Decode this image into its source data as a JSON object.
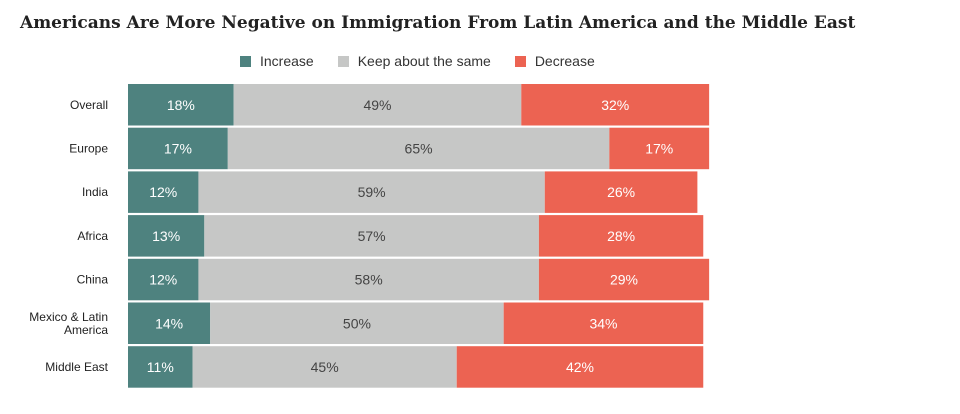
{
  "colors": {
    "increase": "#4e827f",
    "same": "#c6c7c6",
    "decrease": "#ec6352",
    "label_light": "#ffffff",
    "label_dark": "#444444"
  },
  "chart_data": {
    "type": "bar",
    "orientation": "horizontal",
    "stacked": true,
    "title": "Americans Are More Negative on Immigration From Latin America and the Middle East",
    "legend_position": "top",
    "categories": [
      [
        "Overall"
      ],
      [
        "Europe"
      ],
      [
        "India"
      ],
      [
        "Africa"
      ],
      [
        "China"
      ],
      [
        "Mexico & Latin",
        "America"
      ],
      [
        "Middle East"
      ]
    ],
    "series": [
      {
        "name": "Increase",
        "key": "increase",
        "values": [
          18,
          17,
          12,
          13,
          12,
          14,
          11
        ],
        "labels": [
          "18%",
          "17%",
          "12%",
          "13%",
          "12%",
          "14%",
          "11%"
        ]
      },
      {
        "name": "Keep about the same",
        "key": "same",
        "values": [
          49,
          65,
          59,
          57,
          58,
          50,
          45
        ],
        "labels": [
          "49%",
          "65%",
          "59%",
          "57%",
          "58%",
          "50%",
          "45%"
        ]
      },
      {
        "name": "Decrease",
        "key": "decrease",
        "values": [
          32,
          17,
          26,
          28,
          29,
          34,
          42
        ],
        "labels": [
          "32%",
          "17%",
          "26%",
          "28%",
          "29%",
          "34%",
          "42%"
        ]
      }
    ],
    "xlim": [
      0,
      100
    ],
    "grid": false
  }
}
